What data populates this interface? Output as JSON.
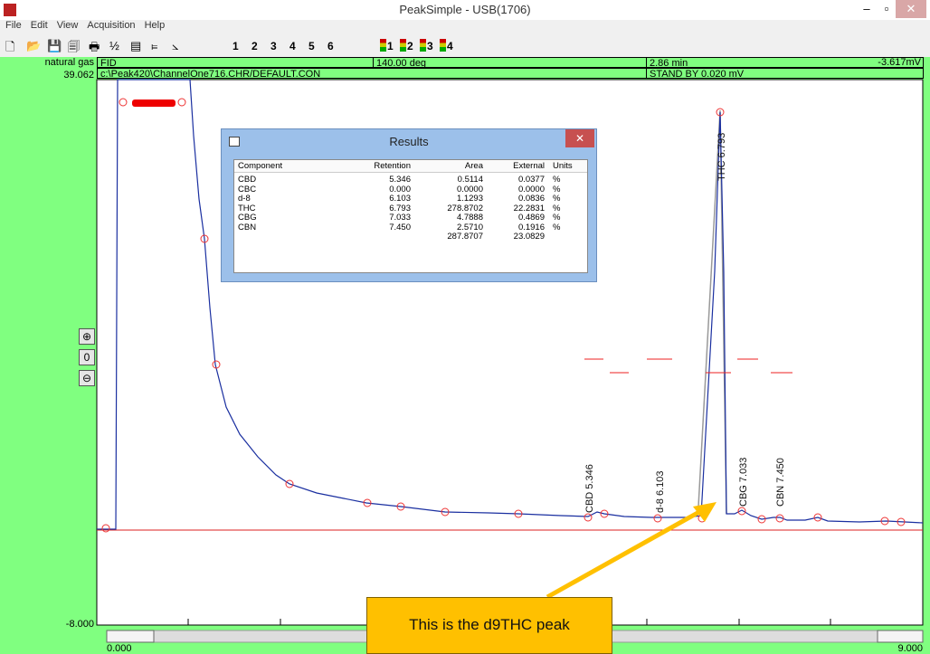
{
  "window": {
    "title": "PeakSimple - USB(1706)"
  },
  "menu": [
    "File",
    "Edit",
    "View",
    "Acquisition",
    "Help"
  ],
  "toolbar": {
    "numbers": [
      "1",
      "2",
      "3",
      "4",
      "5",
      "6"
    ],
    "channels": [
      "1",
      "2",
      "3",
      "4"
    ]
  },
  "header": {
    "channel_name": "natural gas",
    "detector": "FID",
    "temperature": "140.00 deg",
    "time": "2.86 min",
    "signal": "-3.617mV",
    "ymax": "39.062",
    "file": "c:\\Peak420\\ChannelOne716.CHR/DEFAULT.CON",
    "status": "STAND BY 0.020 mV"
  },
  "plot": {
    "ymin": "-8.000",
    "xmin": "0.000",
    "xmax": "9.000",
    "peak_labels": [
      "THC 6.793",
      "CBD 5.346",
      "d-8 6.103",
      "CBG 7.033",
      "CBN 7.450"
    ]
  },
  "results": {
    "title": "Results",
    "columns": [
      "Component",
      "Retention",
      "Area",
      "External",
      "Units"
    ],
    "rows": [
      [
        "CBD",
        "5.346",
        "0.5114",
        "0.0377",
        "%"
      ],
      [
        "CBC",
        "0.000",
        "0.0000",
        "0.0000",
        "%"
      ],
      [
        "d-8",
        "6.103",
        "1.1293",
        "0.0836",
        "%"
      ],
      [
        "THC",
        "6.793",
        "278.8702",
        "22.2831",
        "%"
      ],
      [
        "CBG",
        "7.033",
        "4.7888",
        "0.4869",
        "%"
      ],
      [
        "CBN",
        "7.450",
        "2.5710",
        "0.1916",
        "%"
      ]
    ],
    "totals": [
      "287.8707",
      "23.0829"
    ]
  },
  "annotation": "This is the d9THC peak"
}
